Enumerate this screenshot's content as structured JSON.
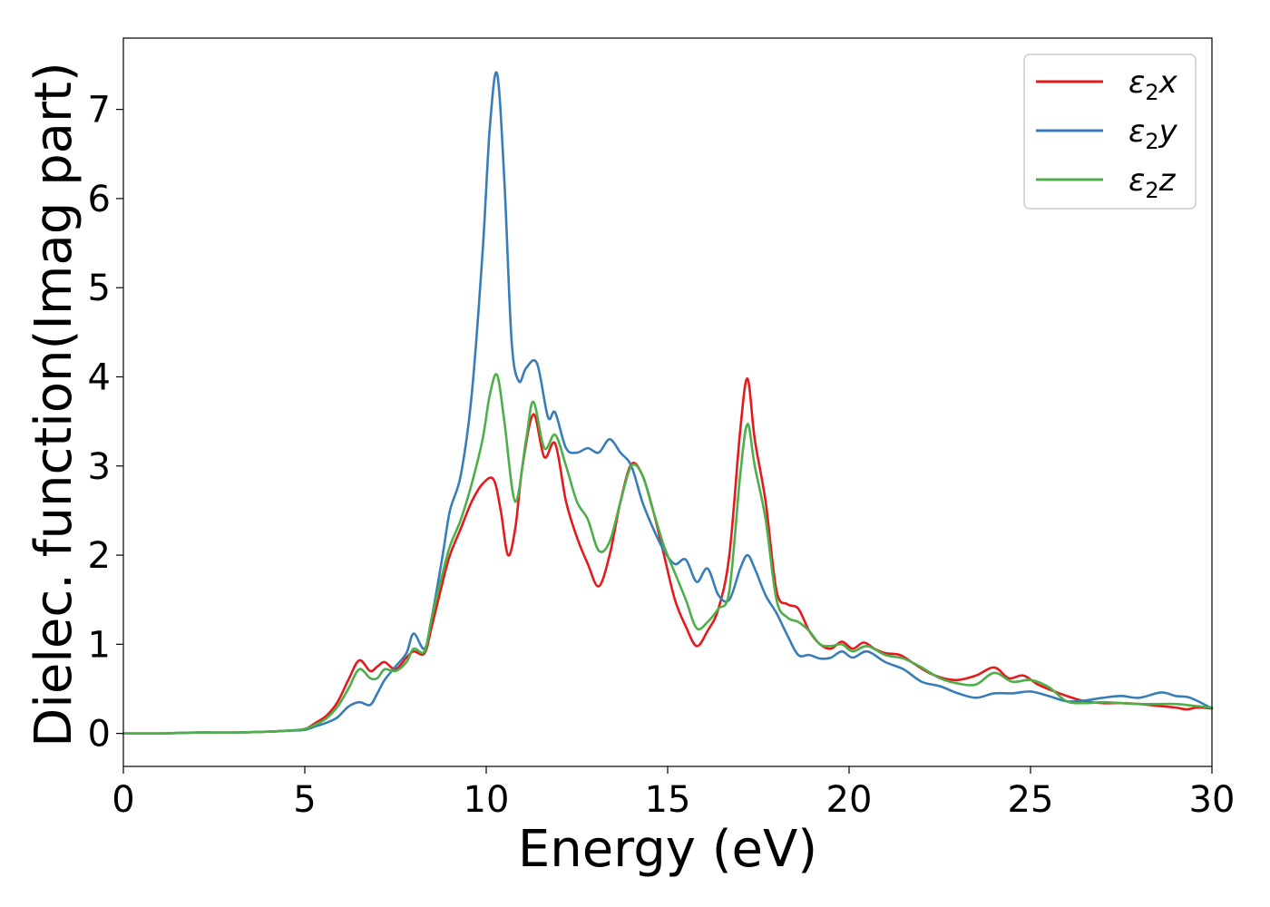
{
  "chart_data": {
    "type": "line",
    "title": "",
    "xlabel": "Energy (eV)",
    "ylabel": "Dielec. function(Imag part)",
    "xlim": [
      0,
      30
    ],
    "ylim": [
      -0.37,
      7.8
    ],
    "xticks": [
      0,
      5,
      10,
      15,
      20,
      25,
      30
    ],
    "yticks": [
      0,
      1,
      2,
      3,
      4,
      5,
      6,
      7
    ],
    "xtick_labels": [
      "0",
      "5",
      "10",
      "15",
      "20",
      "25",
      "30"
    ],
    "ytick_labels": [
      "0",
      "1",
      "2",
      "3",
      "4",
      "5",
      "6",
      "7"
    ],
    "grid": false,
    "legend_position": "top-right",
    "series": [
      {
        "name": "ε₂x",
        "legend_label": {
          "base": "ε",
          "sub": "2",
          "suffix": "x"
        },
        "color": "#e41a1c",
        "x": [
          0,
          1,
          2,
          3,
          4,
          4.5,
          5,
          5.3,
          5.6,
          5.9,
          6.2,
          6.5,
          6.8,
          7.0,
          7.2,
          7.5,
          7.8,
          8.0,
          8.3,
          8.5,
          8.8,
          9.0,
          9.3,
          9.6,
          9.9,
          10.2,
          10.4,
          10.6,
          10.8,
          11.0,
          11.3,
          11.6,
          11.9,
          12.2,
          12.5,
          12.8,
          13.1,
          13.4,
          13.7,
          14.0,
          14.3,
          14.6,
          14.9,
          15.2,
          15.5,
          15.8,
          16.1,
          16.4,
          16.7,
          17.0,
          17.2,
          17.4,
          17.7,
          18.0,
          18.3,
          18.6,
          18.9,
          19.2,
          19.5,
          19.8,
          20.1,
          20.4,
          20.7,
          21.0,
          21.4,
          21.8,
          22.2,
          22.6,
          23.0,
          23.5,
          24.0,
          24.4,
          24.8,
          25.2,
          25.6,
          26.0,
          26.5,
          27.0,
          27.5,
          28.0,
          28.5,
          29.0,
          29.3,
          29.6,
          30.0
        ],
        "y": [
          0.0,
          0.0,
          0.01,
          0.01,
          0.02,
          0.03,
          0.05,
          0.12,
          0.2,
          0.35,
          0.6,
          0.82,
          0.7,
          0.75,
          0.8,
          0.72,
          0.85,
          0.92,
          0.9,
          1.2,
          1.7,
          2.0,
          2.3,
          2.6,
          2.8,
          2.85,
          2.5,
          2.0,
          2.3,
          3.0,
          3.58,
          3.1,
          3.25,
          2.6,
          2.2,
          1.9,
          1.65,
          2.0,
          2.6,
          3.02,
          2.9,
          2.5,
          2.0,
          1.5,
          1.2,
          0.98,
          1.15,
          1.4,
          2.0,
          3.4,
          3.98,
          3.3,
          2.6,
          1.6,
          1.45,
          1.4,
          1.15,
          1.0,
          0.95,
          1.03,
          0.95,
          1.02,
          0.95,
          0.9,
          0.88,
          0.78,
          0.68,
          0.62,
          0.6,
          0.65,
          0.74,
          0.62,
          0.65,
          0.55,
          0.48,
          0.42,
          0.36,
          0.34,
          0.34,
          0.33,
          0.31,
          0.29,
          0.27,
          0.29,
          0.28
        ]
      },
      {
        "name": "ε₂y",
        "legend_label": {
          "base": "ε",
          "sub": "2",
          "suffix": "y"
        },
        "color": "#377eb8",
        "x": [
          0,
          1,
          2,
          3,
          4,
          4.5,
          5,
          5.3,
          5.6,
          5.9,
          6.2,
          6.5,
          6.8,
          7.0,
          7.2,
          7.5,
          7.8,
          8.0,
          8.3,
          8.5,
          8.8,
          9.0,
          9.3,
          9.6,
          9.9,
          10.1,
          10.3,
          10.5,
          10.7,
          10.9,
          11.1,
          11.4,
          11.7,
          11.9,
          12.2,
          12.5,
          12.8,
          13.1,
          13.4,
          13.7,
          14.0,
          14.3,
          14.6,
          14.9,
          15.2,
          15.5,
          15.8,
          16.1,
          16.4,
          16.7,
          17.0,
          17.2,
          17.4,
          17.7,
          18.0,
          18.3,
          18.6,
          18.9,
          19.2,
          19.5,
          19.8,
          20.1,
          20.5,
          21.0,
          21.5,
          22.0,
          22.5,
          23.0,
          23.5,
          24.0,
          24.5,
          25.0,
          25.5,
          26.0,
          26.5,
          27.0,
          27.5,
          28.0,
          28.6,
          29.0,
          29.4,
          30.0
        ],
        "y": [
          0.0,
          0.0,
          0.01,
          0.01,
          0.02,
          0.03,
          0.04,
          0.08,
          0.12,
          0.18,
          0.3,
          0.35,
          0.32,
          0.45,
          0.6,
          0.75,
          0.9,
          1.12,
          0.95,
          1.3,
          2.0,
          2.5,
          2.9,
          3.8,
          5.4,
          6.8,
          7.4,
          6.2,
          4.4,
          3.95,
          4.1,
          4.15,
          3.55,
          3.6,
          3.2,
          3.15,
          3.2,
          3.15,
          3.3,
          3.15,
          3.0,
          2.6,
          2.3,
          2.05,
          1.9,
          1.95,
          1.7,
          1.85,
          1.55,
          1.5,
          1.85,
          2.0,
          1.85,
          1.55,
          1.35,
          1.1,
          0.88,
          0.88,
          0.84,
          0.85,
          0.92,
          0.85,
          0.92,
          0.8,
          0.72,
          0.58,
          0.53,
          0.45,
          0.4,
          0.45,
          0.45,
          0.47,
          0.42,
          0.36,
          0.37,
          0.4,
          0.42,
          0.4,
          0.46,
          0.42,
          0.4,
          0.28
        ]
      },
      {
        "name": "ε₂z",
        "legend_label": {
          "base": "ε",
          "sub": "2",
          "suffix": "z"
        },
        "color": "#4daf4a",
        "x": [
          0,
          1,
          2,
          3,
          4,
          4.5,
          5,
          5.3,
          5.6,
          5.9,
          6.2,
          6.5,
          6.8,
          7.0,
          7.2,
          7.5,
          7.8,
          8.0,
          8.3,
          8.5,
          8.8,
          9.0,
          9.3,
          9.6,
          9.9,
          10.1,
          10.3,
          10.5,
          10.8,
          11.1,
          11.3,
          11.6,
          11.9,
          12.2,
          12.5,
          12.8,
          13.1,
          13.4,
          13.7,
          14.0,
          14.3,
          14.6,
          14.9,
          15.2,
          15.5,
          15.8,
          16.1,
          16.4,
          16.7,
          17.0,
          17.2,
          17.4,
          17.7,
          18.0,
          18.3,
          18.6,
          18.9,
          19.2,
          19.5,
          19.8,
          20.1,
          20.5,
          21.0,
          21.5,
          22.0,
          22.5,
          23.0,
          23.5,
          24.0,
          24.5,
          25.0,
          25.5,
          26.0,
          26.5,
          27.0,
          27.5,
          28.0,
          28.5,
          29.0,
          29.5,
          30.0
        ],
        "y": [
          0.0,
          0.0,
          0.01,
          0.01,
          0.02,
          0.03,
          0.05,
          0.1,
          0.17,
          0.3,
          0.5,
          0.72,
          0.62,
          0.62,
          0.72,
          0.7,
          0.8,
          0.95,
          0.92,
          1.3,
          1.8,
          2.1,
          2.4,
          2.8,
          3.3,
          3.8,
          4.02,
          3.5,
          2.6,
          3.3,
          3.72,
          3.2,
          3.35,
          3.0,
          2.6,
          2.4,
          2.05,
          2.15,
          2.6,
          3.0,
          2.9,
          2.5,
          2.1,
          1.8,
          1.5,
          1.18,
          1.25,
          1.4,
          1.6,
          2.9,
          3.47,
          3.0,
          2.4,
          1.5,
          1.3,
          1.25,
          1.15,
          1.0,
          0.98,
          1.0,
          0.92,
          0.98,
          0.88,
          0.84,
          0.74,
          0.62,
          0.56,
          0.55,
          0.68,
          0.58,
          0.6,
          0.52,
          0.36,
          0.34,
          0.35,
          0.34,
          0.33,
          0.33,
          0.33,
          0.31,
          0.29
        ]
      }
    ]
  }
}
